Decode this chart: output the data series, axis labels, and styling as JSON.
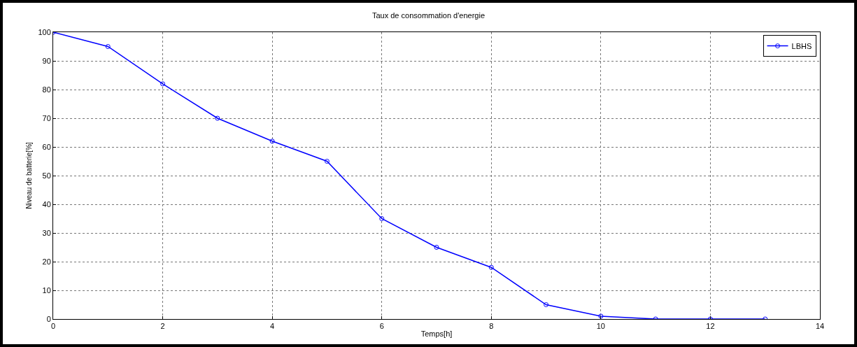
{
  "chart_data": {
    "type": "line",
    "title": "Taux de consommation d'energie",
    "xlabel": "Temps[h]",
    "ylabel": "Niveau de batterie[%]",
    "x": [
      0,
      1,
      2,
      3,
      4,
      5,
      6,
      7,
      8,
      9,
      10,
      11,
      12,
      13
    ],
    "series": [
      {
        "name": "LBHS",
        "color": "#0000ff",
        "values": [
          100,
          95,
          82,
          70,
          62,
          55,
          35,
          25,
          18,
          5,
          1,
          0,
          0,
          0
        ]
      }
    ],
    "xlim": [
      0,
      14
    ],
    "xticks": [
      0,
      2,
      4,
      6,
      8,
      10,
      12,
      14
    ],
    "ylim": [
      0,
      100
    ],
    "yticks": [
      0,
      10,
      20,
      30,
      40,
      50,
      60,
      70,
      80,
      90,
      100
    ],
    "grid": true,
    "legend": "top right",
    "marker": "circle",
    "line_style": "solid"
  }
}
